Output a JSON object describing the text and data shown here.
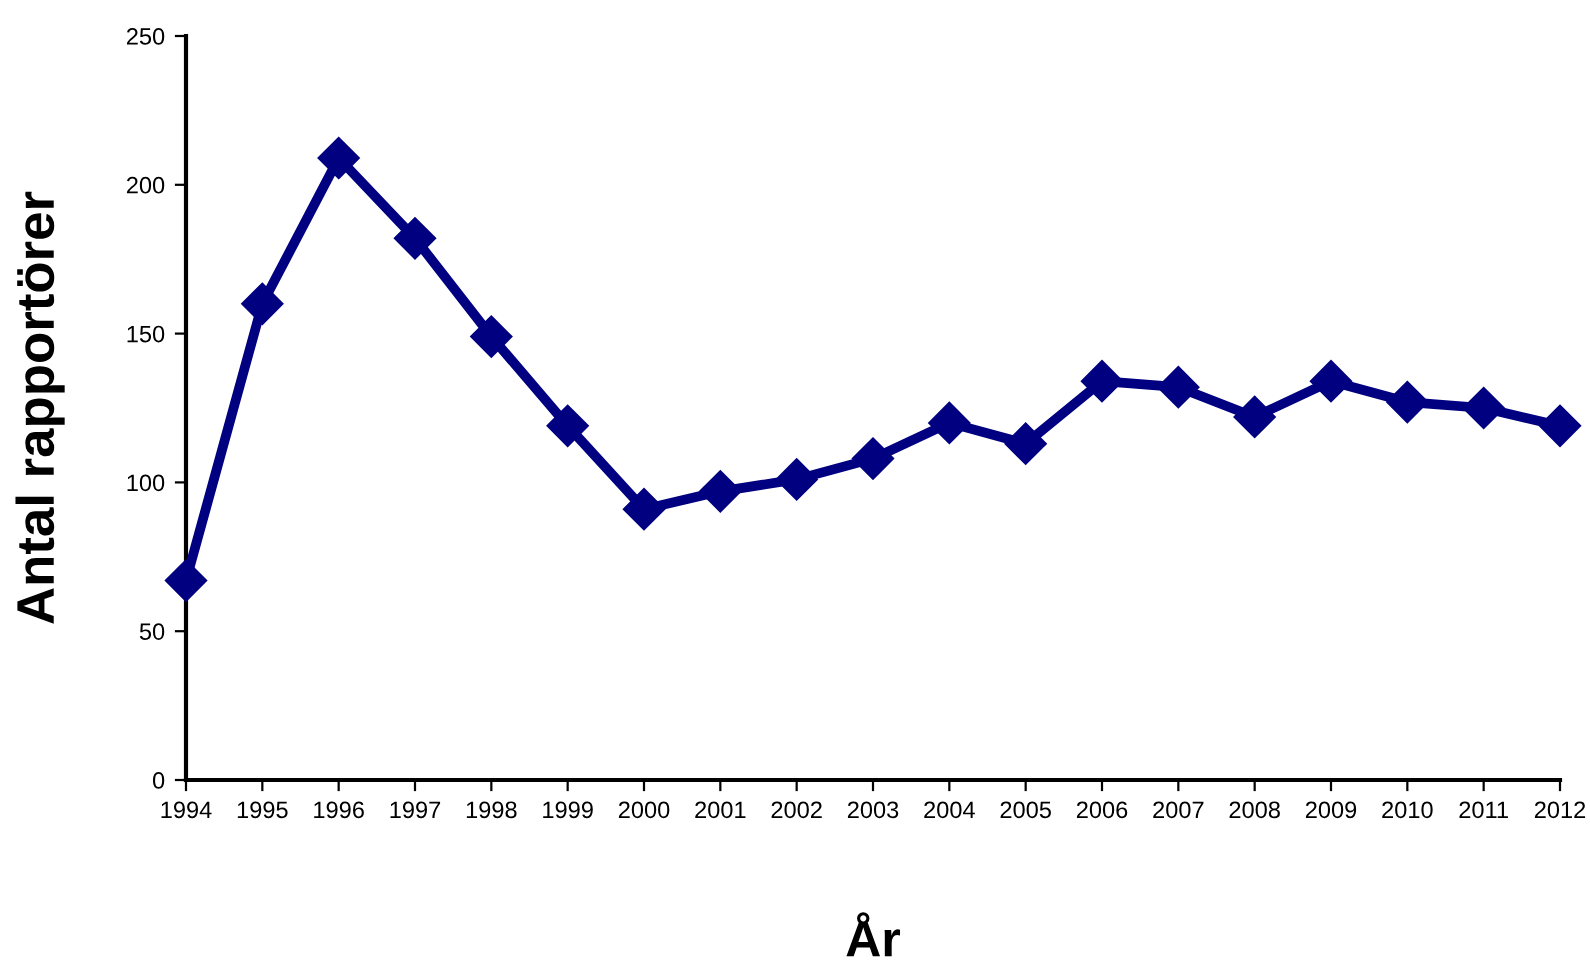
{
  "chart_data": {
    "type": "line",
    "xlabel": "År",
    "ylabel": "Antal rapportörer",
    "categories": [
      "1994",
      "1995",
      "1996",
      "1997",
      "1998",
      "1999",
      "2000",
      "2001",
      "2002",
      "2003",
      "2004",
      "2005",
      "2006",
      "2007",
      "2008",
      "2009",
      "2010",
      "2011",
      "2012"
    ],
    "series": [
      {
        "color": "#000080",
        "values": [
          67,
          160,
          209,
          182,
          149,
          119,
          91,
          97,
          101,
          108,
          120,
          113,
          134,
          132,
          122,
          134,
          127,
          125,
          119
        ]
      }
    ],
    "ylim": [
      0,
      250
    ],
    "yticks": [
      0,
      50,
      100,
      150,
      200,
      250
    ],
    "marker": "diamond",
    "line_style": "solid",
    "grid": false,
    "legend": false
  }
}
